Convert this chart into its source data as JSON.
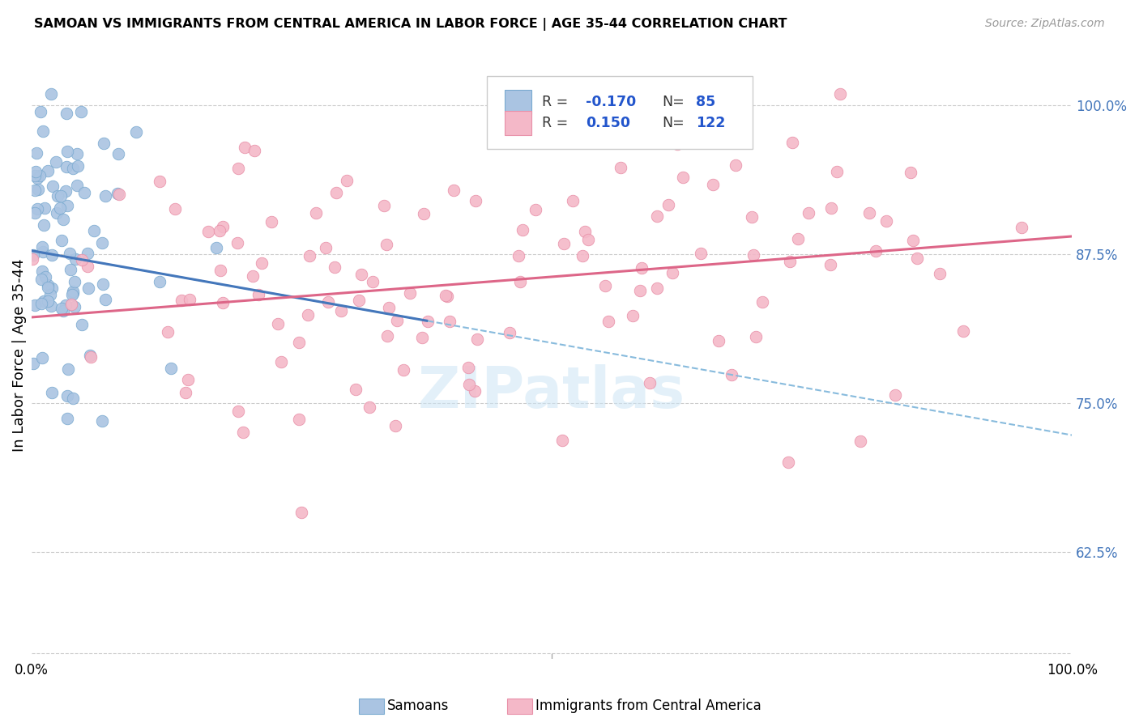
{
  "title": "SAMOAN VS IMMIGRANTS FROM CENTRAL AMERICA IN LABOR FORCE | AGE 35-44 CORRELATION CHART",
  "source": "Source: ZipAtlas.com",
  "ylabel": "In Labor Force | Age 35-44",
  "ytick_labels": [
    "62.5%",
    "75.0%",
    "87.5%",
    "100.0%"
  ],
  "ytick_values": [
    0.625,
    0.75,
    0.875,
    1.0
  ],
  "xlim": [
    0.0,
    1.0
  ],
  "ylim": [
    0.535,
    1.045
  ],
  "blue_marker_color": "#aac4e2",
  "blue_edge_color": "#7aaad0",
  "pink_marker_color": "#f4b8c8",
  "pink_edge_color": "#e890a8",
  "trend_blue_solid_color": "#4477bb",
  "trend_blue_dashed_color": "#88bbdd",
  "trend_pink_solid_color": "#dd6688",
  "legend_R_blue": "-0.170",
  "legend_N_blue": "85",
  "legend_R_pink": "0.150",
  "legend_N_pink": "122",
  "watermark": "ZIPatlas",
  "blue_R": -0.17,
  "blue_N": 85,
  "pink_R": 0.15,
  "pink_N": 122,
  "blue_intercept": 0.878,
  "blue_slope": -0.155,
  "pink_intercept": 0.822,
  "pink_slope": 0.068,
  "blue_scatter_seed": 42,
  "pink_scatter_seed": 123,
  "grid_color": "#cccccc",
  "rhs_tick_color": "#4477bb",
  "title_fontsize": 11.5,
  "axis_fontsize": 12
}
